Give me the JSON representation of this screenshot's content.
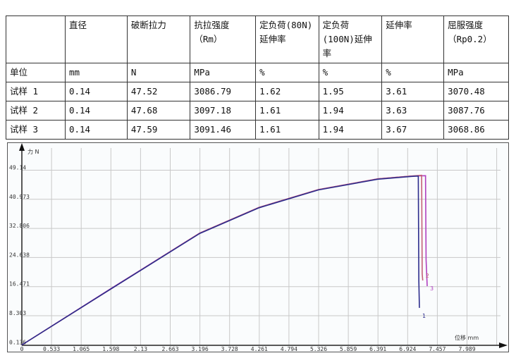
{
  "table": {
    "headers": [
      "",
      "直径",
      "破断拉力",
      "抗拉强度（Rm）",
      "定负荷(80N)延伸率",
      "定负荷(100N)延伸率",
      "延伸率",
      "屈服强度（Rp0.2）"
    ],
    "rows": [
      [
        "单位",
        "mm",
        "N",
        "MPa",
        "%",
        "%",
        "%",
        "MPa"
      ],
      [
        "试样 1",
        "0.14",
        "47.52",
        "3086.79",
        "1.62",
        "1.95",
        "3.61",
        "3070.48"
      ],
      [
        "试样 2",
        "0.14",
        "47.68",
        "3097.18",
        "1.61",
        "1.94",
        "3.63",
        "3087.76"
      ],
      [
        "试样 3",
        "0.14",
        "47.59",
        "3091.46",
        "1.61",
        "1.94",
        "3.67",
        "3068.86"
      ]
    ]
  },
  "chart_data": {
    "type": "line",
    "ylabel": "力 N",
    "xlabel": "位移 mm",
    "yticks": [
      "0.136",
      "8.303",
      "16.471",
      "24.638",
      "32.806",
      "40.973",
      "49.14"
    ],
    "xticks": [
      "0",
      "0.533",
      "1.065",
      "1.598",
      "2.13",
      "2.663",
      "3.196",
      "3.728",
      "4.261",
      "4.794",
      "5.326",
      "5.859",
      "6.391",
      "6.924",
      "7.457",
      "7.989"
    ],
    "xlim": [
      0,
      8.52
    ],
    "ylim": [
      0,
      51
    ],
    "grid": true,
    "series": [
      {
        "name": "1",
        "color": "#2c2c8c",
        "points": [
          [
            0,
            0.1
          ],
          [
            1.598,
            15.8
          ],
          [
            3.196,
            31.4
          ],
          [
            4.261,
            38.6
          ],
          [
            5.326,
            43.6
          ],
          [
            6.391,
            46.6
          ],
          [
            7.0,
            47.4
          ],
          [
            7.12,
            47.5
          ],
          [
            7.13,
            18
          ],
          [
            7.14,
            10.5
          ]
        ]
      },
      {
        "name": "2",
        "color": "#c46078",
        "points": [
          [
            0,
            0.1
          ],
          [
            1.598,
            15.8
          ],
          [
            3.196,
            31.5
          ],
          [
            4.261,
            38.7
          ],
          [
            5.326,
            43.7
          ],
          [
            6.391,
            46.7
          ],
          [
            7.0,
            47.5
          ],
          [
            7.18,
            47.7
          ],
          [
            7.19,
            20
          ],
          [
            7.2,
            18.2
          ]
        ]
      },
      {
        "name": "3",
        "color": "#b040c0",
        "points": [
          [
            0,
            0.1
          ],
          [
            1.598,
            15.9
          ],
          [
            3.196,
            31.5
          ],
          [
            4.261,
            38.7
          ],
          [
            5.326,
            43.7
          ],
          [
            6.391,
            46.7
          ],
          [
            7.0,
            47.5
          ],
          [
            7.25,
            47.6
          ],
          [
            7.26,
            24
          ],
          [
            7.28,
            16.6
          ]
        ]
      }
    ]
  }
}
